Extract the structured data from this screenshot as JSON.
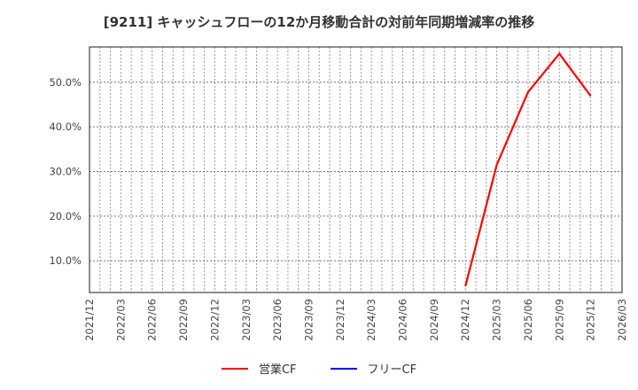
{
  "title": "[9211]  キャッシュフローの12か月移動合計の対前年同期増減率の推移",
  "legend": [
    {
      "label": "営業CF",
      "color": "#ff0000"
    },
    {
      "label": "フリーCF",
      "color": "#0000ff"
    }
  ],
  "chart_data": {
    "type": "line",
    "title": "[9211]  キャッシュフローの12か月移動合計の対前年同期増減率の推移",
    "xlabel": "",
    "ylabel": "",
    "x_ticks": [
      "2021/12",
      "2022/03",
      "2022/06",
      "2022/09",
      "2022/12",
      "2023/03",
      "2023/06",
      "2023/09",
      "2023/12",
      "2024/03",
      "2024/06",
      "2024/09",
      "2024/12",
      "2025/03",
      "2025/06",
      "2025/09",
      "2025/12",
      "2026/03"
    ],
    "y_ticks": [
      "10.0%",
      "20.0%",
      "30.0%",
      "40.0%",
      "50.0%"
    ],
    "y_tick_values": [
      10,
      20,
      30,
      40,
      50
    ],
    "ylim": [
      2.9,
      57.9
    ],
    "grid": true,
    "legend_position": "bottom",
    "series": [
      {
        "name": "営業CF",
        "color": "#ff0000",
        "x": [
          "2024/12",
          "2025/03",
          "2025/06",
          "2025/09",
          "2025/12"
        ],
        "values": [
          4.3,
          31.5,
          47.8,
          56.4,
          46.9
        ]
      },
      {
        "name": "フリーCF",
        "color": "#0000ff",
        "x": [],
        "values": []
      }
    ]
  }
}
